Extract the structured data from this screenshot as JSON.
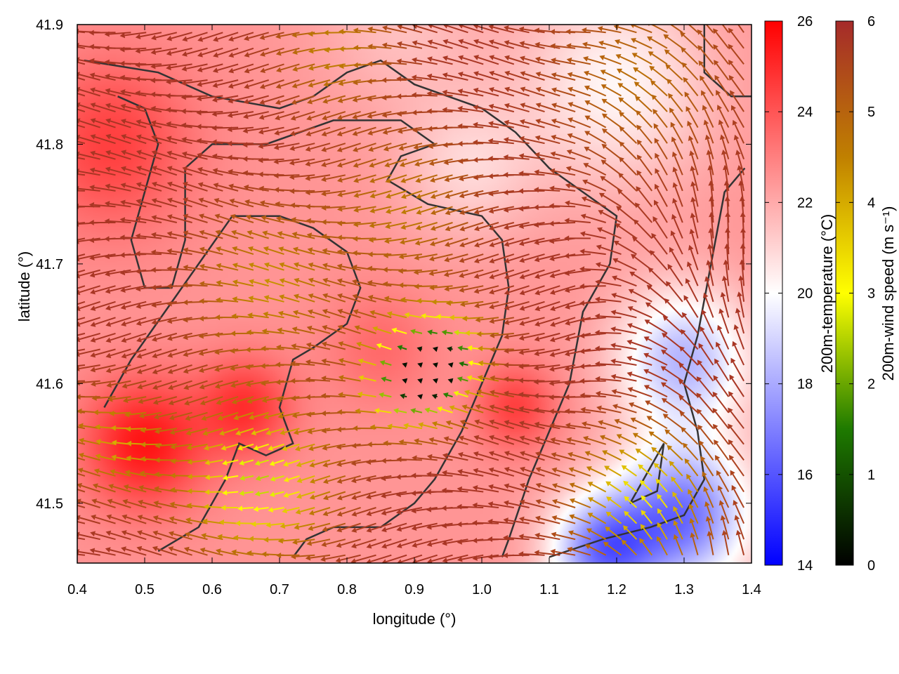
{
  "chart_data": {
    "type": "heatmap",
    "title": "",
    "xlabel": "longitude (°)",
    "ylabel": "latitude (°)",
    "xlim": [
      0.4,
      1.4
    ],
    "ylim": [
      41.45,
      41.9
    ],
    "xticks": [
      "0.4",
      "0.5",
      "0.6",
      "0.7",
      "0.8",
      "0.9",
      "1.0",
      "1.1",
      "1.2",
      "1.3",
      "1.4"
    ],
    "yticks": [
      "41.5",
      "41.6",
      "41.7",
      "41.8",
      "41.9"
    ],
    "temperature_colorbar": {
      "label": "200m-temperature (°C)",
      "range": [
        14,
        26
      ],
      "ticks": [
        "14",
        "16",
        "18",
        "20",
        "22",
        "24",
        "26"
      ],
      "colors": [
        "#0000ff",
        "#ffffff",
        "#ff0000"
      ]
    },
    "wind_colorbar": {
      "label": "200m-wind speed (m s⁻¹)",
      "range": [
        0,
        6
      ],
      "ticks": [
        "0",
        "1",
        "2",
        "3",
        "4",
        "5",
        "6"
      ],
      "colors": [
        "#000000",
        "#1e7a00",
        "#ffff00",
        "#c08000",
        "#a52a2a"
      ]
    },
    "contour_color": "#333333",
    "temperature_field": {
      "background": 22.5,
      "features": [
        {
          "lon": 0.5,
          "lat": 41.55,
          "temp": 25.5,
          "r": 0.09
        },
        {
          "lon": 0.45,
          "lat": 41.8,
          "temp": 24.5,
          "r": 0.12
        },
        {
          "lon": 0.65,
          "lat": 41.58,
          "temp": 24.8,
          "r": 0.07
        },
        {
          "lon": 0.85,
          "lat": 41.63,
          "temp": 23.5,
          "r": 0.08
        },
        {
          "lon": 1.05,
          "lat": 41.58,
          "temp": 24.5,
          "r": 0.06
        },
        {
          "lon": 0.98,
          "lat": 41.78,
          "temp": 21.0,
          "r": 0.1
        },
        {
          "lon": 1.2,
          "lat": 41.85,
          "temp": 20.2,
          "r": 0.14
        },
        {
          "lon": 1.3,
          "lat": 41.62,
          "temp": 18.3,
          "r": 0.1
        },
        {
          "lon": 1.3,
          "lat": 41.49,
          "temp": 16.8,
          "r": 0.1
        },
        {
          "lon": 1.18,
          "lat": 41.46,
          "temp": 17.0,
          "r": 0.08
        },
        {
          "lon": 0.88,
          "lat": 41.9,
          "temp": 21.5,
          "r": 0.12
        }
      ]
    },
    "wind_field": {
      "background_speed": 5.8,
      "background_direction_deg": 180,
      "features": [
        {
          "lon": 0.7,
          "lat": 41.68,
          "speed": 4.3,
          "r": 0.1
        },
        {
          "lon": 0.9,
          "lat": 41.75,
          "speed": 4.6,
          "r": 0.1
        },
        {
          "lon": 0.95,
          "lat": 41.62,
          "speed": 1.2,
          "r": 0.07
        },
        {
          "lon": 0.9,
          "lat": 41.6,
          "speed": 1.5,
          "r": 0.06
        },
        {
          "lon": 0.68,
          "lat": 41.52,
          "speed": 2.5,
          "r": 0.1
        },
        {
          "lon": 0.48,
          "lat": 41.55,
          "speed": 4.0,
          "r": 0.07
        },
        {
          "lon": 1.25,
          "lat": 41.5,
          "speed": 3.2,
          "r": 0.09
        },
        {
          "lon": 1.25,
          "lat": 41.85,
          "speed": 4.8,
          "r": 0.12
        },
        {
          "lon": 0.8,
          "lat": 41.88,
          "speed": 4.5,
          "r": 0.08
        }
      ]
    },
    "contours": [
      [
        [
          0.41,
          41.87
        ],
        [
          0.52,
          41.86
        ],
        [
          0.6,
          41.84
        ],
        [
          0.7,
          41.83
        ],
        [
          0.75,
          41.84
        ],
        [
          0.8,
          41.86
        ],
        [
          0.85,
          41.87
        ],
        [
          0.9,
          41.85
        ],
        [
          1.0,
          41.83
        ],
        [
          1.05,
          41.81
        ],
        [
          1.1,
          41.78
        ],
        [
          1.15,
          41.76
        ],
        [
          1.2,
          41.74
        ],
        [
          1.19,
          41.7
        ],
        [
          1.15,
          41.66
        ],
        [
          1.13,
          41.6
        ],
        [
          1.1,
          41.56
        ],
        [
          1.07,
          41.52
        ],
        [
          1.04,
          41.47
        ],
        [
          1.03,
          41.455
        ]
      ],
      [
        [
          0.46,
          41.84
        ],
        [
          0.5,
          41.83
        ],
        [
          0.52,
          41.8
        ],
        [
          0.5,
          41.76
        ],
        [
          0.48,
          41.72
        ],
        [
          0.5,
          41.68
        ],
        [
          0.54,
          41.68
        ],
        [
          0.56,
          41.72
        ],
        [
          0.56,
          41.78
        ],
        [
          0.6,
          41.8
        ],
        [
          0.68,
          41.8
        ],
        [
          0.78,
          41.82
        ],
        [
          0.88,
          41.82
        ],
        [
          0.93,
          41.8
        ],
        [
          0.88,
          41.79
        ],
        [
          0.86,
          41.77
        ],
        [
          0.92,
          41.75
        ],
        [
          1.0,
          41.74
        ],
        [
          1.03,
          41.72
        ],
        [
          1.04,
          41.68
        ],
        [
          1.03,
          41.64
        ],
        [
          1.0,
          41.6
        ],
        [
          0.97,
          41.56
        ],
        [
          0.93,
          41.52
        ],
        [
          0.9,
          41.5
        ],
        [
          0.85,
          41.48
        ],
        [
          0.78,
          41.48
        ],
        [
          0.74,
          41.47
        ],
        [
          0.72,
          41.455
        ]
      ],
      [
        [
          0.44,
          41.58
        ],
        [
          0.48,
          41.62
        ],
        [
          0.53,
          41.66
        ],
        [
          0.58,
          41.7
        ],
        [
          0.63,
          41.74
        ],
        [
          0.7,
          41.74
        ],
        [
          0.75,
          41.73
        ],
        [
          0.8,
          41.71
        ],
        [
          0.82,
          41.68
        ],
        [
          0.8,
          41.65
        ],
        [
          0.75,
          41.63
        ],
        [
          0.72,
          41.62
        ],
        [
          0.7,
          41.58
        ],
        [
          0.72,
          41.55
        ],
        [
          0.68,
          41.54
        ],
        [
          0.64,
          41.55
        ],
        [
          0.62,
          41.52
        ],
        [
          0.58,
          41.48
        ],
        [
          0.52,
          41.46
        ]
      ],
      [
        [
          1.1,
          41.455
        ],
        [
          1.18,
          41.47
        ],
        [
          1.25,
          41.48
        ],
        [
          1.3,
          41.49
        ],
        [
          1.33,
          41.52
        ],
        [
          1.32,
          41.56
        ],
        [
          1.3,
          41.6
        ],
        [
          1.32,
          41.64
        ],
        [
          1.34,
          41.7
        ],
        [
          1.36,
          41.76
        ],
        [
          1.39,
          41.78
        ]
      ],
      [
        [
          1.22,
          41.5
        ],
        [
          1.26,
          41.51
        ],
        [
          1.27,
          41.55
        ],
        [
          1.25,
          41.53
        ],
        [
          1.22,
          41.5
        ]
      ],
      [
        [
          1.33,
          41.9
        ],
        [
          1.33,
          41.86
        ],
        [
          1.37,
          41.84
        ],
        [
          1.4,
          41.84
        ]
      ]
    ]
  }
}
